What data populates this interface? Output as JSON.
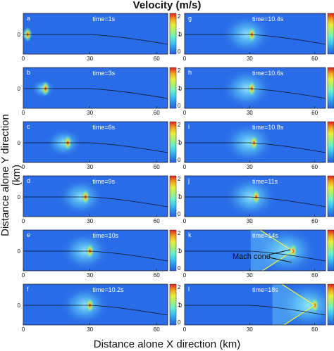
{
  "figure": {
    "title": "Velocity (m/s)",
    "xlabel": "Distance alone X direction (km)",
    "ylabel": "Distance alone Y direction (km)"
  },
  "colorbar": {
    "ticks": [
      "2",
      "1",
      "0"
    ],
    "colors": [
      "#2a5de0",
      "#2a8fe8",
      "#3ec8f0",
      "#6af0c8",
      "#a8f070",
      "#e8f040",
      "#f0a020",
      "#e02020"
    ]
  },
  "chart_data": {
    "type": "heatmap",
    "x_ticks": [
      "0",
      "30",
      "60"
    ],
    "y_ticks": [
      "0"
    ],
    "xlim": [
      0,
      65
    ],
    "color_range": [
      0,
      2
    ],
    "panels": [
      {
        "letter": "a",
        "time": "time=1s",
        "source_x": 2
      },
      {
        "letter": "b",
        "time": "time=3s",
        "source_x": 10
      },
      {
        "letter": "c",
        "time": "time=6s",
        "source_x": 20
      },
      {
        "letter": "d",
        "time": "time=9s",
        "source_x": 28
      },
      {
        "letter": "e",
        "time": "time=10s",
        "source_x": 30
      },
      {
        "letter": "f",
        "time": "time=10.2s",
        "source_x": 30
      },
      {
        "letter": "g",
        "time": "time=10.4s",
        "source_x": 31
      },
      {
        "letter": "h",
        "time": "time=10.6s",
        "source_x": 31
      },
      {
        "letter": "i",
        "time": "time=10.8s",
        "source_x": 32
      },
      {
        "letter": "j",
        "time": "time=11s",
        "source_x": 33
      },
      {
        "letter": "k",
        "time": "time=14s",
        "source_x": 50,
        "annotation": "Mach cone"
      },
      {
        "letter": "l",
        "time": "time=18s",
        "source_x": 60
      }
    ]
  }
}
